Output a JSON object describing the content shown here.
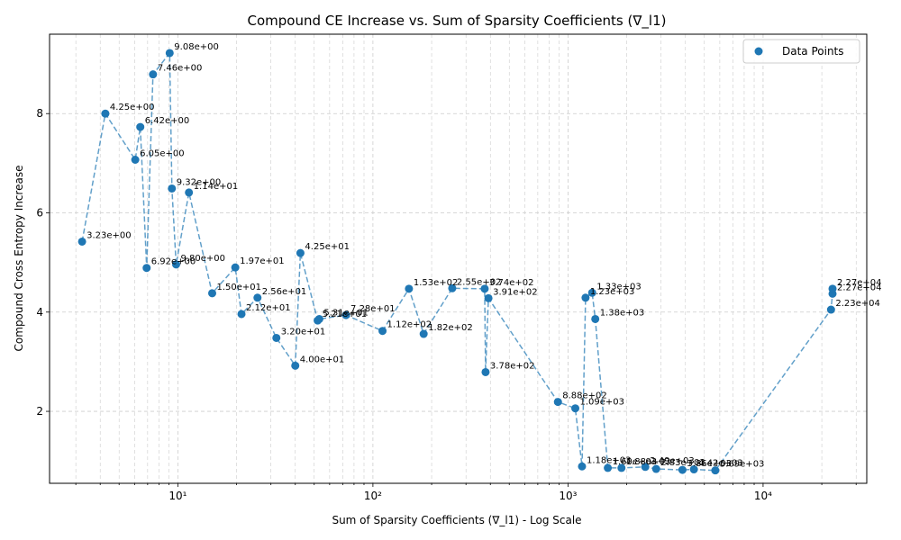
{
  "chart_data": {
    "type": "scatter",
    "title": "Compound CE Increase vs. Sum of Sparsity Coefficients (∇_l1)",
    "xlabel": "Sum of Sparsity Coefficients (∇_l1) - Log Scale",
    "ylabel": "Compound Cross Entropy Increase",
    "xscale": "log",
    "xlim": [
      2.2,
      34000
    ],
    "ylim": [
      0.55,
      9.6
    ],
    "xticks": [
      10,
      100,
      1000,
      10000
    ],
    "xtick_labels": [
      "10¹",
      "10²",
      "10³",
      "10⁴"
    ],
    "yticks": [
      2,
      4,
      6,
      8
    ],
    "ytick_labels": [
      "2",
      "4",
      "6",
      "8"
    ],
    "grid": true,
    "legend": {
      "position": "top-right",
      "label": "Data Points"
    },
    "colors": {
      "points": "#1f77b4",
      "line": "#1f77b4",
      "grid": "#cccccc"
    },
    "series": [
      {
        "name": "Data Points",
        "points": [
          {
            "x": 3.23,
            "y": 5.42,
            "label": "3.23e+00"
          },
          {
            "x": 4.25,
            "y": 8.0,
            "label": "4.25e+00"
          },
          {
            "x": 6.05,
            "y": 7.07,
            "label": "6.05e+00"
          },
          {
            "x": 6.42,
            "y": 7.73,
            "label": "6.42e+00"
          },
          {
            "x": 6.92,
            "y": 4.89,
            "label": "6.92e+00"
          },
          {
            "x": 7.46,
            "y": 8.79,
            "label": "7.46e+00"
          },
          {
            "x": 9.08,
            "y": 9.22,
            "label": "9.08e+00"
          },
          {
            "x": 9.32,
            "y": 6.49,
            "label": "9.32e+00"
          },
          {
            "x": 9.8,
            "y": 4.96,
            "label": "9.80e+00"
          },
          {
            "x": 11.4,
            "y": 6.41,
            "label": "1.14e+01"
          },
          {
            "x": 15.0,
            "y": 4.38,
            "label": "1.50e+01"
          },
          {
            "x": 19.7,
            "y": 4.9,
            "label": "1.97e+01"
          },
          {
            "x": 21.2,
            "y": 3.96,
            "label": "2.12e+01"
          },
          {
            "x": 25.6,
            "y": 4.29,
            "label": "2.56e+01"
          },
          {
            "x": 32.0,
            "y": 3.48,
            "label": "3.20e+01"
          },
          {
            "x": 40.0,
            "y": 2.92,
            "label": "4.00e+01"
          },
          {
            "x": 42.5,
            "y": 5.19,
            "label": "4.25e+01"
          },
          {
            "x": 52.1,
            "y": 3.83,
            "label": "5.21e+01"
          },
          {
            "x": 53.1,
            "y": 3.86,
            "label": "5.31e+01"
          },
          {
            "x": 72.8,
            "y": 3.94,
            "label": "7.28e+01"
          },
          {
            "x": 112,
            "y": 3.62,
            "label": "1.12e+02"
          },
          {
            "x": 153,
            "y": 4.47,
            "label": "1.53e+02"
          },
          {
            "x": 182,
            "y": 3.56,
            "label": "1.82e+02"
          },
          {
            "x": 255,
            "y": 4.48,
            "label": "2.55e+02"
          },
          {
            "x": 374,
            "y": 4.47,
            "label": "3.74e+02"
          },
          {
            "x": 378,
            "y": 2.79,
            "label": "3.78e+02"
          },
          {
            "x": 391,
            "y": 4.28,
            "label": "3.91e+02"
          },
          {
            "x": 888,
            "y": 2.19,
            "label": "8.88e+02"
          },
          {
            "x": 1090,
            "y": 2.06,
            "label": "1.09e+03"
          },
          {
            "x": 1180,
            "y": 0.89,
            "label": "1.18e+03"
          },
          {
            "x": 1230,
            "y": 4.29,
            "label": "1.23e+03"
          },
          {
            "x": 1330,
            "y": 4.39,
            "label": "1.33e+03"
          },
          {
            "x": 1380,
            "y": 3.86,
            "label": "1.38e+03"
          },
          {
            "x": 1600,
            "y": 0.86,
            "label": "1.60e+03"
          },
          {
            "x": 1880,
            "y": 0.86,
            "label": "1.88e+03"
          },
          {
            "x": 2490,
            "y": 0.88,
            "label": "2.49e+03"
          },
          {
            "x": 2830,
            "y": 0.84,
            "label": "2.83e+03"
          },
          {
            "x": 3860,
            "y": 0.82,
            "label": "3.86e+03"
          },
          {
            "x": 4420,
            "y": 0.83,
            "label": "4.42e+03"
          },
          {
            "x": 5690,
            "y": 0.81,
            "label": "5.69e+03"
          },
          {
            "x": 22300,
            "y": 4.05,
            "label": "2.23e+04"
          },
          {
            "x": 22700,
            "y": 4.37,
            "label": "2.27e+04"
          },
          {
            "x": 22700,
            "y": 4.47,
            "label": "2.27e+04"
          }
        ]
      }
    ]
  }
}
